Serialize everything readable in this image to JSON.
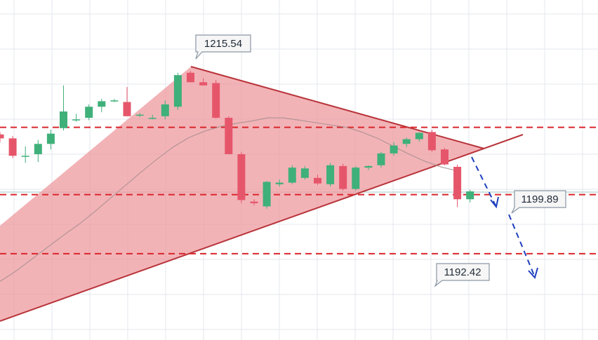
{
  "colors": {
    "bull": "#3fb07a",
    "bear": "#e6566b",
    "wedge_fill": "#ee9a9f",
    "wedge_line": "#b8343a",
    "level_line": "#d9262c",
    "forecast_arrow": "#1f3fbf",
    "ma_line": "#a48d8c",
    "grid": "#e5e7ed",
    "label_bg": "#f6f6f6",
    "label_border": "#8a96a4"
  },
  "chart_data": {
    "type": "candlestick",
    "ylim": [
      1181.5,
      1224.5
    ],
    "grid": true,
    "levels": [
      1208.4,
      1199.89,
      1192.42
    ],
    "annotations": [
      {
        "text": "1215.54",
        "value": 1215.54
      },
      {
        "text": "1199.89",
        "value": 1199.89
      },
      {
        "text": "1192.42",
        "value": 1192.42
      }
    ],
    "candles": [
      {
        "o": 1207.5,
        "h": 1207.8,
        "l": 1206.5,
        "c": 1207.0
      },
      {
        "o": 1207.0,
        "h": 1207.3,
        "l": 1204.5,
        "c": 1204.8
      },
      {
        "o": 1204.8,
        "h": 1206.0,
        "l": 1203.9,
        "c": 1204.8
      },
      {
        "o": 1205.0,
        "h": 1206.8,
        "l": 1204.0,
        "c": 1206.3
      },
      {
        "o": 1206.3,
        "h": 1208.1,
        "l": 1205.6,
        "c": 1207.6
      },
      {
        "o": 1208.3,
        "h": 1213.7,
        "l": 1208.0,
        "c": 1210.4
      },
      {
        "o": 1209.4,
        "h": 1210.1,
        "l": 1209.1,
        "c": 1209.4
      },
      {
        "o": 1209.6,
        "h": 1211.3,
        "l": 1209.3,
        "c": 1211.0
      },
      {
        "o": 1211.0,
        "h": 1212.0,
        "l": 1210.3,
        "c": 1211.7
      },
      {
        "o": 1211.8,
        "h": 1212.0,
        "l": 1211.6,
        "c": 1211.8
      },
      {
        "o": 1211.6,
        "h": 1213.5,
        "l": 1209.8,
        "c": 1209.8
      },
      {
        "o": 1210.0,
        "h": 1210.2,
        "l": 1209.7,
        "c": 1210.0
      },
      {
        "o": 1209.6,
        "h": 1210.0,
        "l": 1209.4,
        "c": 1209.6
      },
      {
        "o": 1209.8,
        "h": 1211.8,
        "l": 1209.4,
        "c": 1211.3
      },
      {
        "o": 1211.0,
        "h": 1215.3,
        "l": 1210.6,
        "c": 1215.0
      },
      {
        "o": 1215.3,
        "h": 1215.5,
        "l": 1214.1,
        "c": 1214.1
      },
      {
        "o": 1214.1,
        "h": 1214.6,
        "l": 1213.7,
        "c": 1213.7
      },
      {
        "o": 1214.0,
        "h": 1214.4,
        "l": 1209.5,
        "c": 1209.6
      },
      {
        "o": 1209.6,
        "h": 1209.8,
        "l": 1205.0,
        "c": 1205.0
      },
      {
        "o": 1205.0,
        "h": 1205.3,
        "l": 1198.8,
        "c": 1199.2
      },
      {
        "o": 1199.0,
        "h": 1199.3,
        "l": 1198.5,
        "c": 1198.8
      },
      {
        "o": 1198.4,
        "h": 1201.6,
        "l": 1198.1,
        "c": 1201.5
      },
      {
        "o": 1201.2,
        "h": 1201.8,
        "l": 1200.9,
        "c": 1201.4
      },
      {
        "o": 1201.4,
        "h": 1203.6,
        "l": 1201.2,
        "c": 1203.3
      },
      {
        "o": 1202.0,
        "h": 1203.5,
        "l": 1201.8,
        "c": 1203.2
      },
      {
        "o": 1202.0,
        "h": 1202.4,
        "l": 1201.1,
        "c": 1201.3
      },
      {
        "o": 1201.2,
        "h": 1203.9,
        "l": 1200.9,
        "c": 1203.6
      },
      {
        "o": 1203.5,
        "h": 1203.8,
        "l": 1200.4,
        "c": 1200.6
      },
      {
        "o": 1200.6,
        "h": 1203.5,
        "l": 1200.4,
        "c": 1203.3
      },
      {
        "o": 1203.3,
        "h": 1203.6,
        "l": 1203.0,
        "c": 1203.5
      },
      {
        "o": 1203.6,
        "h": 1205.3,
        "l": 1203.3,
        "c": 1205.1
      },
      {
        "o": 1205.1,
        "h": 1206.5,
        "l": 1204.8,
        "c": 1206.1
      },
      {
        "o": 1206.3,
        "h": 1207.1,
        "l": 1205.9,
        "c": 1206.9
      },
      {
        "o": 1206.9,
        "h": 1207.8,
        "l": 1206.6,
        "c": 1207.7
      },
      {
        "o": 1207.8,
        "h": 1208.1,
        "l": 1205.3,
        "c": 1205.5
      },
      {
        "o": 1205.6,
        "h": 1205.8,
        "l": 1203.6,
        "c": 1203.7
      },
      {
        "o": 1203.4,
        "h": 1203.7,
        "l": 1198.3,
        "c": 1199.3
      },
      {
        "o": 1199.3,
        "h": 1200.5,
        "l": 1198.9,
        "c": 1200.3
      }
    ],
    "moving_average": [
      1188.9,
      1190.2,
      1191.7,
      1193.2,
      1194.7,
      1196.1,
      1197.7,
      1199.4,
      1201.1,
      1202.8,
      1204.4,
      1205.9,
      1207.1,
      1207.9,
      1208.5,
      1208.9,
      1209.2,
      1209.6,
      1209.6,
      1209.3,
      1209.0,
      1208.7,
      1208.4,
      1207.8,
      1207.0,
      1206.0,
      1205.0,
      1204.1,
      1203.4,
      1202.9
    ]
  }
}
